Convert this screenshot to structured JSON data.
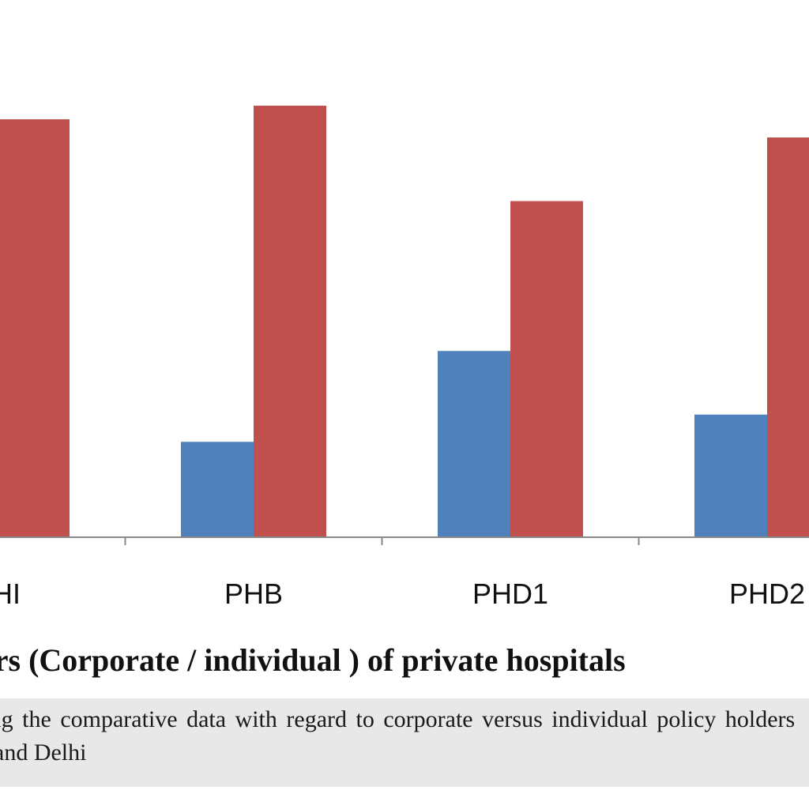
{
  "chart_data": {
    "type": "bar",
    "categories": [
      "PHI",
      "PHB",
      "PHD1",
      "PHD2"
    ],
    "series": [
      {
        "color": "#4f81bd",
        "values": [
          null,
          21,
          41,
          27
        ]
      },
      {
        "color": "#c0504d",
        "values": [
          92,
          95,
          74,
          88
        ]
      }
    ],
    "ylim": [
      0,
      100
    ],
    "grid": false,
    "legend": "none",
    "title": "Policy holders (Corporate / individual ) of private hospitals",
    "xlabel": "",
    "ylabel": ""
  },
  "caption": {
    "line1": "Showing the comparative data with regard to corporate versus individual policy holders",
    "line2": "and Delhi"
  },
  "colors": {
    "axis": "#888888",
    "caption_background": "#e8e8e8"
  }
}
